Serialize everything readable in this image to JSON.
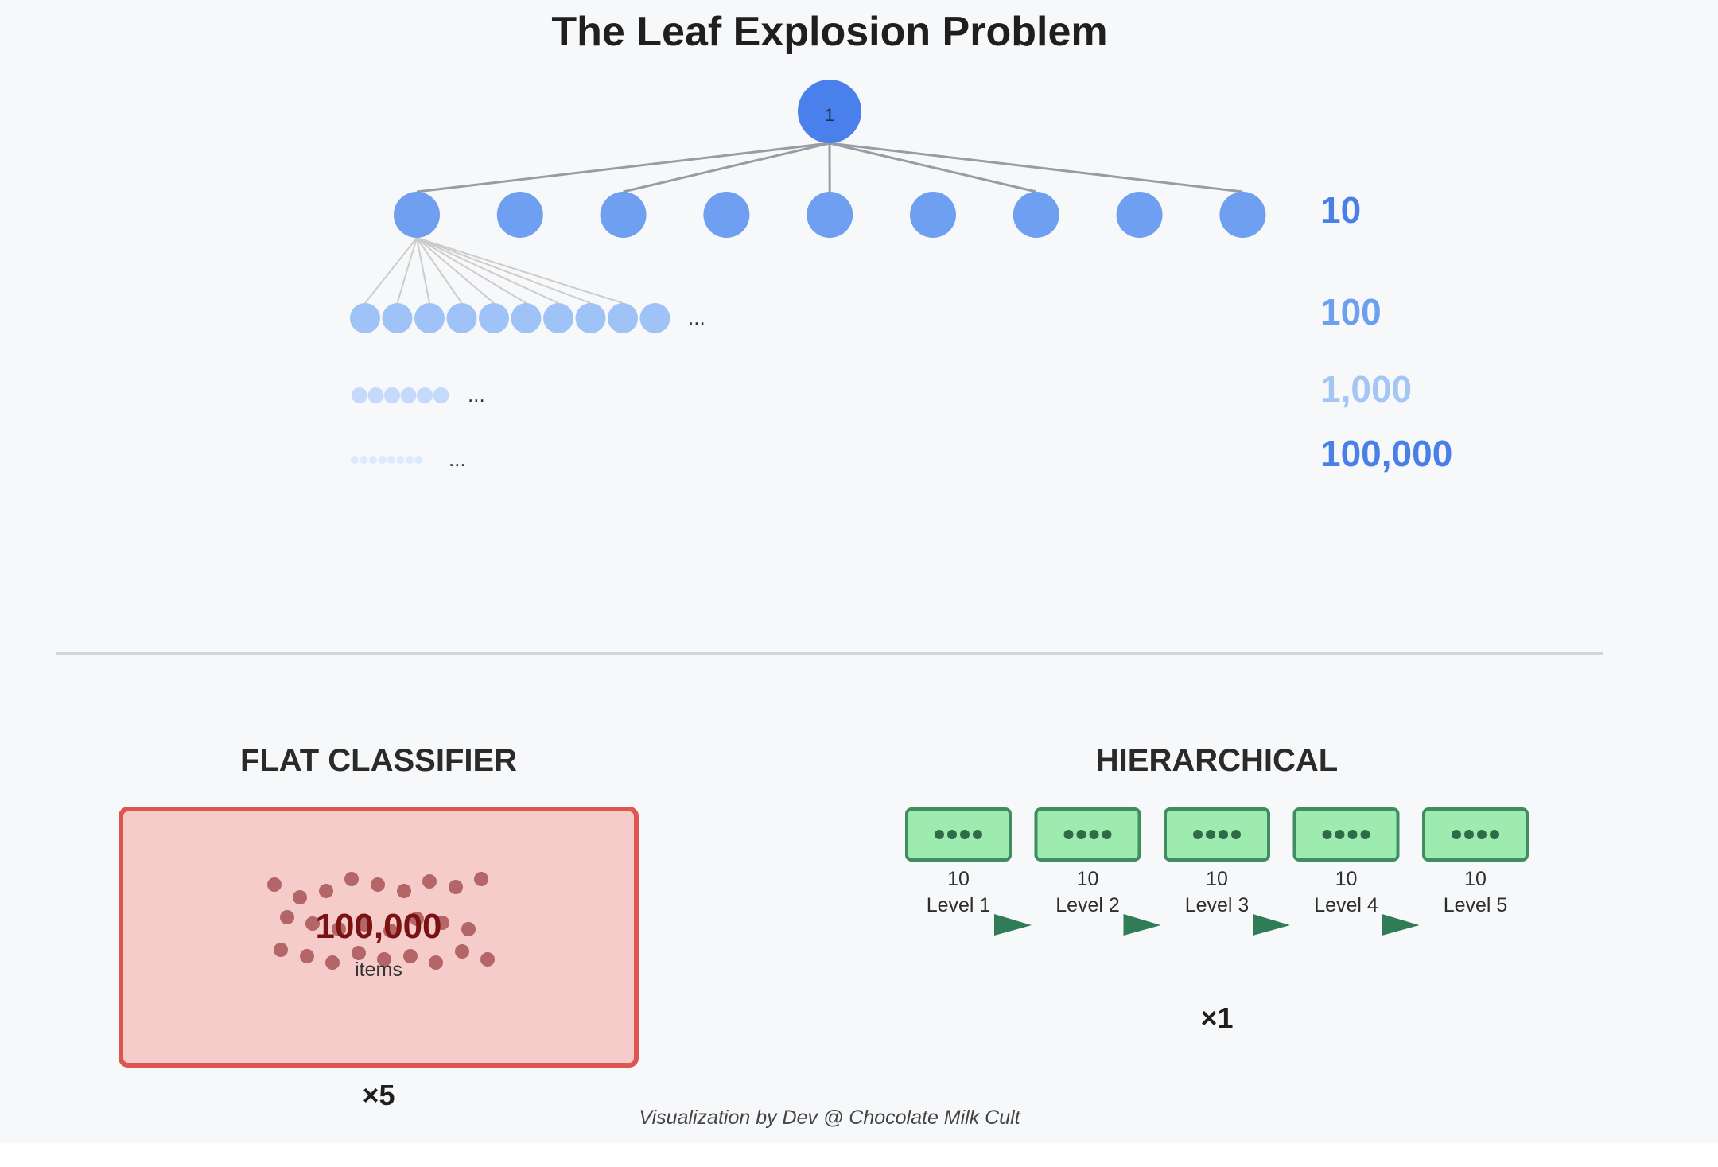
{
  "title": "The Leaf Explosion Problem",
  "colors": {
    "root": "#4a80ec",
    "level1": "#6e9ff0",
    "level2": "#9fc3f6",
    "level3": "#c4dafa",
    "level4": "#dde9fc",
    "edge_main": "#9a9ba4",
    "edge_sub": "#cccccc",
    "flat_fill": "#f6cccb",
    "flat_stroke": "#dd5651",
    "flat_dot": "#a24b4e",
    "hier_fill": "#9eebb0",
    "hier_stroke": "#3f8d61",
    "hier_dot": "#2f6b48",
    "arrow": "#2f7c57"
  },
  "tree": {
    "root_label": "1",
    "rows": [
      {
        "count_label": "10",
        "count_color": "#4a7fe8",
        "visible_nodes": 9,
        "ellipsis": ""
      },
      {
        "count_label": "100",
        "count_color": "#6c9ff0",
        "visible_nodes": 10,
        "ellipsis": "..."
      },
      {
        "count_label": "1,000",
        "count_color": "#a4c6f5",
        "visible_nodes": 6,
        "ellipsis": "..."
      },
      {
        "count_label": "100,000",
        "count_color": "#4a7fe8",
        "visible_nodes": 8,
        "ellipsis": "..."
      }
    ]
  },
  "flat": {
    "heading": "FLAT CLASSIFIER",
    "count": "100,000",
    "unit": "items",
    "multiplier": "×5"
  },
  "hierarchical": {
    "heading": "HIERARCHICAL",
    "levels": [
      {
        "count": "10",
        "label": "Level 1"
      },
      {
        "count": "10",
        "label": "Level 2"
      },
      {
        "count": "10",
        "label": "Level 3"
      },
      {
        "count": "10",
        "label": "Level 4"
      },
      {
        "count": "10",
        "label": "Level 5"
      }
    ],
    "multiplier": "×1"
  },
  "credit": "Visualization by Dev @ Chocolate Milk Cult"
}
